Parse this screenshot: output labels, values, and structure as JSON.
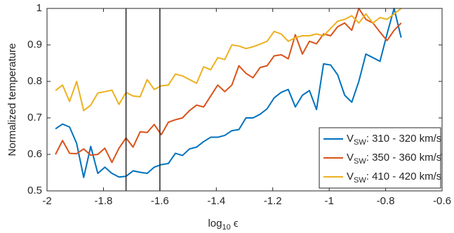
{
  "chart_data": {
    "type": "line",
    "xlabel": "log10 ϵ",
    "ylabel": "Normalized temperature",
    "x": [
      -1.97,
      -1.945,
      -1.92,
      -1.895,
      -1.87,
      -1.845,
      -1.82,
      -1.795,
      -1.77,
      -1.745,
      -1.72,
      -1.695,
      -1.67,
      -1.645,
      -1.62,
      -1.595,
      -1.57,
      -1.545,
      -1.52,
      -1.495,
      -1.47,
      -1.445,
      -1.42,
      -1.395,
      -1.37,
      -1.345,
      -1.32,
      -1.295,
      -1.27,
      -1.245,
      -1.22,
      -1.195,
      -1.17,
      -1.145,
      -1.12,
      -1.095,
      -1.07,
      -1.045,
      -1.02,
      -0.995,
      -0.97,
      -0.945,
      -0.92,
      -0.895,
      -0.87,
      -0.845,
      -0.82,
      -0.795,
      -0.77,
      -0.745
    ],
    "series": [
      {
        "name": "VSW: 310 - 320 km/s",
        "color": "#0072bd",
        "values": [
          0.67,
          0.683,
          0.675,
          0.63,
          0.537,
          0.622,
          0.548,
          0.565,
          0.548,
          0.538,
          0.54,
          0.555,
          0.551,
          0.548,
          0.565,
          0.572,
          0.575,
          0.603,
          0.597,
          0.615,
          0.62,
          0.635,
          0.647,
          0.647,
          0.652,
          0.665,
          0.668,
          0.7,
          0.7,
          0.71,
          0.725,
          0.755,
          0.77,
          0.778,
          0.73,
          0.762,
          0.775,
          0.723,
          0.848,
          0.845,
          0.818,
          0.762,
          0.743,
          0.8,
          0.875,
          0.865,
          0.855,
          0.93,
          1.0,
          0.92
        ]
      },
      {
        "name": "VSW: 350 - 360 km/s",
        "color": "#d95319",
        "values": [
          0.6,
          0.638,
          0.603,
          0.602,
          0.615,
          0.598,
          0.6,
          0.617,
          0.578,
          0.617,
          0.645,
          0.62,
          0.662,
          0.66,
          0.682,
          0.654,
          0.688,
          0.695,
          0.7,
          0.72,
          0.735,
          0.73,
          0.76,
          0.79,
          0.772,
          0.79,
          0.843,
          0.822,
          0.81,
          0.838,
          0.843,
          0.87,
          0.873,
          0.862,
          0.928,
          0.875,
          0.91,
          0.903,
          0.93,
          0.925,
          0.95,
          0.96,
          0.94,
          1.0,
          0.97,
          0.96,
          0.935,
          0.912,
          0.94,
          0.96
        ]
      },
      {
        "name": "VSW: 410 - 420 km/s",
        "color": "#edb120",
        "values": [
          0.775,
          0.79,
          0.745,
          0.8,
          0.72,
          0.735,
          0.768,
          0.772,
          0.776,
          0.737,
          0.77,
          0.76,
          0.758,
          0.805,
          0.778,
          0.788,
          0.79,
          0.82,
          0.815,
          0.805,
          0.795,
          0.84,
          0.832,
          0.865,
          0.86,
          0.9,
          0.897,
          0.89,
          0.895,
          0.902,
          0.91,
          0.937,
          0.93,
          0.91,
          0.92,
          0.925,
          0.925,
          0.93,
          0.925,
          0.945,
          0.965,
          0.97,
          0.98,
          0.96,
          0.985,
          0.96,
          0.975,
          0.97,
          0.985,
          1.0
        ]
      }
    ],
    "vlines": [
      -1.72,
      -1.6
    ],
    "xlim": [
      -2,
      -0.6
    ],
    "xticks": [
      -2,
      -1.8,
      -1.6,
      -1.4,
      -1.2,
      -1,
      -0.8,
      -0.6
    ],
    "ylim": [
      0.5,
      1
    ],
    "yticks": [
      0.5,
      0.6,
      0.7,
      0.8,
      0.9,
      1
    ],
    "grid": false,
    "legend": "lower right"
  }
}
